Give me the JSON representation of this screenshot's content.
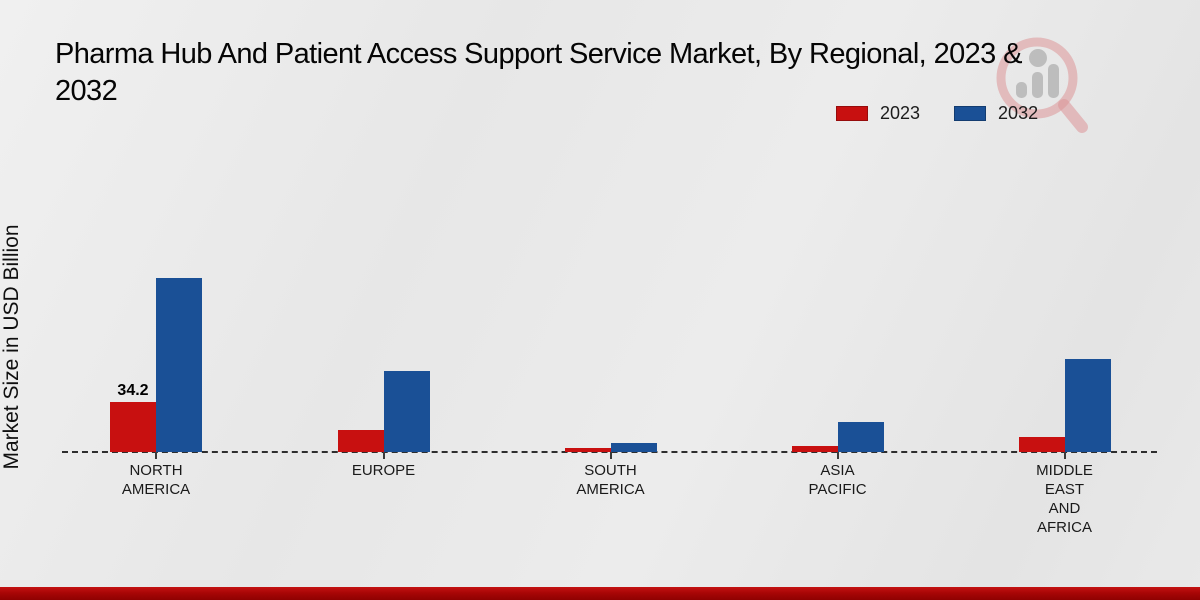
{
  "title": "Pharma Hub And Patient Access Support Service Market, By Regional, 2023 &\n2032",
  "y_axis_label": "Market Size in USD Billion",
  "legend": [
    {
      "label": "2023",
      "color": "#c81010"
    },
    {
      "label": "2032",
      "color": "#1a5096"
    }
  ],
  "colors": {
    "series_2023": "#c81010",
    "series_2032": "#1a5096",
    "footer_band": "#a80606",
    "baseline": "#2e2e2e"
  },
  "chart_data": {
    "type": "bar",
    "title": "Pharma Hub And Patient Access Support Service Market, By Regional, 2023 & 2032",
    "xlabel": "",
    "ylabel": "Market Size in USD Billion",
    "ylim": [
      0,
      130
    ],
    "grid": false,
    "legend_position": "top-right",
    "categories": [
      "NORTH\nAMERICA",
      "EUROPE",
      "SOUTH\nAMERICA",
      "ASIA\nPACIFIC",
      "MIDDLE\nEAST\nAND\nAFRICA"
    ],
    "series": [
      {
        "name": "2023",
        "color": "#c81010",
        "values": [
          34.2,
          15.0,
          2.7,
          4.1,
          10.3
        ]
      },
      {
        "name": "2032",
        "color": "#1a5096",
        "values": [
          119.0,
          55.4,
          6.2,
          20.5,
          63.6
        ]
      }
    ],
    "value_label": {
      "text": "34.2",
      "series_index": 0,
      "category_index": 0
    },
    "note": "Only the 2023 North America bar shows a data label; other values estimated from bar heights."
  }
}
